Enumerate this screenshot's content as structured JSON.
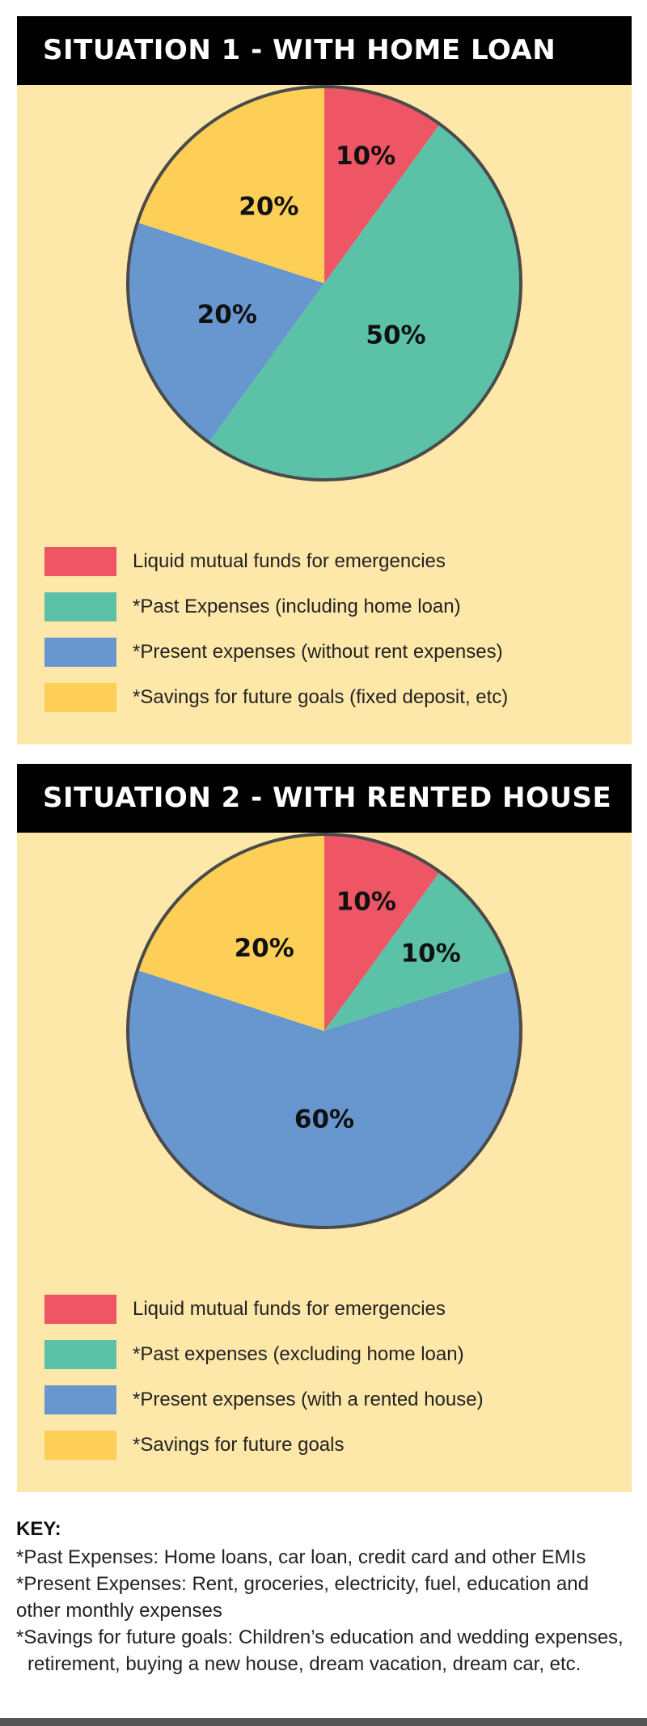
{
  "colors": {
    "panel_bg": "#fde7a9",
    "header_bg": "#000000",
    "red": "#ee5565",
    "teal": "#5bc2a7",
    "blue": "#6897d0",
    "yellow": "#fdcf57",
    "outline": "#4a4a4a"
  },
  "chart_data": [
    {
      "type": "pie",
      "title": "SITUATION 1 - WITH HOME LOAN",
      "slices": [
        {
          "label": "Liquid mutual funds for emergencies",
          "value": 10,
          "display": "10%",
          "color": "#ee5565"
        },
        {
          "label": "*Past Expenses (including home loan)",
          "value": 50,
          "display": "50%",
          "color": "#5bc2a7"
        },
        {
          "label": "*Present expenses (without rent expenses)",
          "value": 20,
          "display": "20%",
          "color": "#6897d0"
        },
        {
          "label": "*Savings for future goals (fixed deposit, etc)",
          "value": 20,
          "display": "20%",
          "color": "#fdcf57"
        }
      ],
      "legend_position": "bottom"
    },
    {
      "type": "pie",
      "title": "SITUATION 2 - WITH RENTED HOUSE",
      "slices": [
        {
          "label": "Liquid mutual funds for emergencies",
          "value": 10,
          "display": "10%",
          "color": "#ee5565"
        },
        {
          "label": "*Past expenses (excluding home loan)",
          "value": 10,
          "display": "10%",
          "color": "#5bc2a7"
        },
        {
          "label": "*Present expenses (with a rented house)",
          "value": 60,
          "display": "60%",
          "color": "#6897d0"
        },
        {
          "label": "*Savings for future goals",
          "value": 20,
          "display": "20%",
          "color": "#fdcf57"
        }
      ],
      "legend_position": "bottom"
    }
  ],
  "key": {
    "title": "KEY:",
    "lines": [
      "*Past Expenses: Home loans, car loan, credit card and other EMIs",
      "*Present Expenses: Rent, groceries, electricity, fuel, education and other monthly expenses",
      "*Savings for future goals: Children’s education and wedding expenses, retirement, buying a new house, dream vacation, dream car, etc."
    ]
  }
}
